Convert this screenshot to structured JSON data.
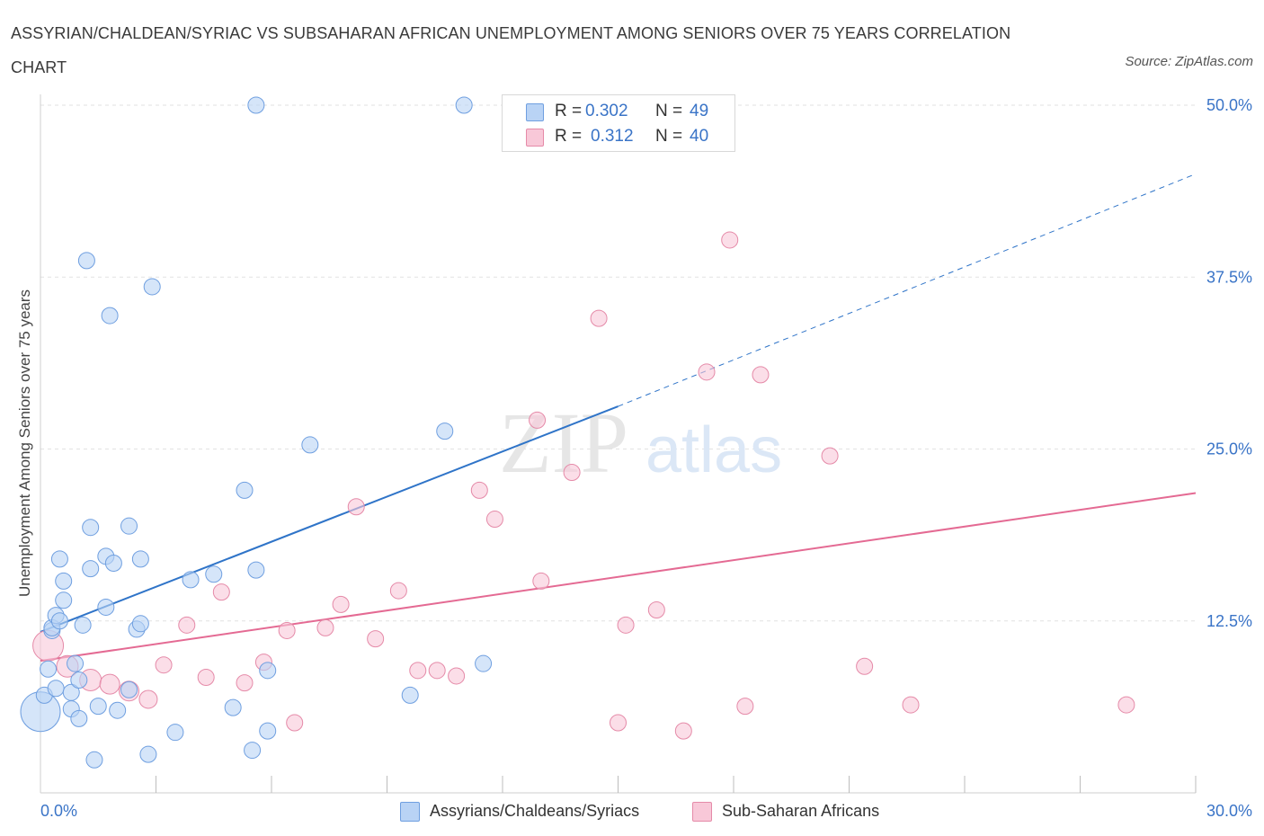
{
  "title": "ASSYRIAN/CHALDEAN/SYRIAC VS SUBSAHARAN AFRICAN UNEMPLOYMENT AMONG SENIORS OVER 75 YEARS CORRELATION CHART",
  "source": "Source: ZipAtlas.com",
  "colors": {
    "blue_fill": "#b9d3f5",
    "blue_stroke": "#6f9fe0",
    "blue_line": "#2f74c8",
    "pink_fill": "#f8c8d8",
    "pink_stroke": "#e58aa8",
    "pink_line": "#e46a93",
    "axis_text": "#3a74c7",
    "grid": "#e2e2e2"
  },
  "legend": {
    "r_label": "R =",
    "n_label": "N =",
    "blue_r": "0.302",
    "blue_n": "49",
    "pink_r": "0.312",
    "pink_n": "40"
  },
  "bottom_legend": {
    "blue": "Assyrians/Chaldeans/Syriacs",
    "pink": "Sub-Saharan Africans"
  },
  "chart_data": {
    "type": "scatter",
    "title": "ASSYRIAN/CHALDEAN/SYRIAC VS SUBSAHARAN AFRICAN UNEMPLOYMENT AMONG SENIORS OVER 75 YEARS CORRELATION CHART",
    "xlabel": "",
    "ylabel": "Unemployment Among Seniors over 75 years",
    "xlim": [
      0,
      30
    ],
    "ylim": [
      0,
      50
    ],
    "x_tick_labels": [
      "0.0%",
      "30.0%"
    ],
    "y_ticks": [
      12.5,
      25,
      37.5,
      50
    ],
    "y_tick_labels": [
      "12.5%",
      "25.0%",
      "37.5%",
      "50.0%"
    ],
    "grid": true,
    "legend_position": "top-center",
    "watermark": "ZIPatlas",
    "series": [
      {
        "name": "Assyrians/Chaldeans/Syriacs",
        "color": "blue",
        "R": 0.302,
        "N": 49,
        "trend": {
          "x0": 0,
          "y0": 11.7,
          "x1": 15,
          "y1": 28.1,
          "dashed_to_x": 30,
          "dashed_to_y": 45.0
        },
        "points": [
          {
            "x": 0.0,
            "y": 5.9,
            "s": 22
          },
          {
            "x": 0.1,
            "y": 7.1,
            "s": 9
          },
          {
            "x": 0.2,
            "y": 9.0,
            "s": 9
          },
          {
            "x": 0.3,
            "y": 11.8,
            "s": 9
          },
          {
            "x": 0.3,
            "y": 12.0,
            "s": 9
          },
          {
            "x": 0.4,
            "y": 7.6,
            "s": 9
          },
          {
            "x": 0.4,
            "y": 12.9,
            "s": 9
          },
          {
            "x": 0.5,
            "y": 12.5,
            "s": 9
          },
          {
            "x": 0.5,
            "y": 17.0,
            "s": 9
          },
          {
            "x": 0.6,
            "y": 14.0,
            "s": 9
          },
          {
            "x": 0.6,
            "y": 15.4,
            "s": 9
          },
          {
            "x": 0.8,
            "y": 6.1,
            "s": 9
          },
          {
            "x": 0.8,
            "y": 7.3,
            "s": 9
          },
          {
            "x": 0.9,
            "y": 9.4,
            "s": 9
          },
          {
            "x": 1.0,
            "y": 8.2,
            "s": 9
          },
          {
            "x": 1.0,
            "y": 5.4,
            "s": 9
          },
          {
            "x": 1.1,
            "y": 12.2,
            "s": 9
          },
          {
            "x": 1.2,
            "y": 38.7,
            "s": 9
          },
          {
            "x": 1.3,
            "y": 16.3,
            "s": 9
          },
          {
            "x": 1.3,
            "y": 19.3,
            "s": 9
          },
          {
            "x": 1.4,
            "y": 2.4,
            "s": 9
          },
          {
            "x": 1.5,
            "y": 6.3,
            "s": 9
          },
          {
            "x": 1.7,
            "y": 13.5,
            "s": 9
          },
          {
            "x": 1.7,
            "y": 17.2,
            "s": 9
          },
          {
            "x": 1.8,
            "y": 34.7,
            "s": 9
          },
          {
            "x": 1.9,
            "y": 16.7,
            "s": 9
          },
          {
            "x": 2.0,
            "y": 6.0,
            "s": 9
          },
          {
            "x": 2.3,
            "y": 7.5,
            "s": 9
          },
          {
            "x": 2.3,
            "y": 19.4,
            "s": 9
          },
          {
            "x": 2.5,
            "y": 11.9,
            "s": 9
          },
          {
            "x": 2.6,
            "y": 12.3,
            "s": 9
          },
          {
            "x": 2.6,
            "y": 17.0,
            "s": 9
          },
          {
            "x": 2.8,
            "y": 2.8,
            "s": 9
          },
          {
            "x": 2.9,
            "y": 36.8,
            "s": 9
          },
          {
            "x": 3.5,
            "y": 4.4,
            "s": 9
          },
          {
            "x": 3.9,
            "y": 15.5,
            "s": 9
          },
          {
            "x": 4.5,
            "y": 15.9,
            "s": 9
          },
          {
            "x": 5.0,
            "y": 6.2,
            "s": 9
          },
          {
            "x": 5.3,
            "y": 22.0,
            "s": 9
          },
          {
            "x": 5.5,
            "y": 3.1,
            "s": 9
          },
          {
            "x": 5.6,
            "y": 16.2,
            "s": 9
          },
          {
            "x": 5.6,
            "y": 50.0,
            "s": 9
          },
          {
            "x": 5.9,
            "y": 4.5,
            "s": 9
          },
          {
            "x": 5.9,
            "y": 8.9,
            "s": 9
          },
          {
            "x": 7.0,
            "y": 25.3,
            "s": 9
          },
          {
            "x": 9.6,
            "y": 7.1,
            "s": 9
          },
          {
            "x": 10.5,
            "y": 26.3,
            "s": 9
          },
          {
            "x": 11.5,
            "y": 9.4,
            "s": 9
          },
          {
            "x": 11.0,
            "y": 50.0,
            "s": 9
          }
        ]
      },
      {
        "name": "Sub-Saharan Africans",
        "color": "pink",
        "R": 0.312,
        "N": 40,
        "trend": {
          "x0": 0,
          "y0": 9.6,
          "x1": 30,
          "y1": 21.8
        },
        "points": [
          {
            "x": 0.2,
            "y": 10.7,
            "s": 17
          },
          {
            "x": 0.7,
            "y": 9.2,
            "s": 12
          },
          {
            "x": 1.3,
            "y": 8.2,
            "s": 12
          },
          {
            "x": 1.8,
            "y": 7.9,
            "s": 11
          },
          {
            "x": 2.3,
            "y": 7.4,
            "s": 11
          },
          {
            "x": 2.8,
            "y": 6.8,
            "s": 10
          },
          {
            "x": 3.2,
            "y": 9.3,
            "s": 9
          },
          {
            "x": 3.8,
            "y": 12.2,
            "s": 9
          },
          {
            "x": 4.3,
            "y": 8.4,
            "s": 9
          },
          {
            "x": 4.7,
            "y": 14.6,
            "s": 9
          },
          {
            "x": 5.3,
            "y": 8.0,
            "s": 9
          },
          {
            "x": 5.8,
            "y": 9.5,
            "s": 9
          },
          {
            "x": 6.4,
            "y": 11.8,
            "s": 9
          },
          {
            "x": 6.6,
            "y": 5.1,
            "s": 9
          },
          {
            "x": 7.4,
            "y": 12.0,
            "s": 9
          },
          {
            "x": 7.8,
            "y": 13.7,
            "s": 9
          },
          {
            "x": 8.2,
            "y": 20.8,
            "s": 9
          },
          {
            "x": 8.7,
            "y": 11.2,
            "s": 9
          },
          {
            "x": 9.3,
            "y": 14.7,
            "s": 9
          },
          {
            "x": 9.8,
            "y": 8.9,
            "s": 9
          },
          {
            "x": 10.3,
            "y": 8.9,
            "s": 9
          },
          {
            "x": 10.8,
            "y": 8.5,
            "s": 9
          },
          {
            "x": 11.4,
            "y": 22.0,
            "s": 9
          },
          {
            "x": 11.8,
            "y": 19.9,
            "s": 9
          },
          {
            "x": 12.9,
            "y": 27.1,
            "s": 9
          },
          {
            "x": 13.0,
            "y": 15.4,
            "s": 9
          },
          {
            "x": 13.8,
            "y": 23.3,
            "s": 9
          },
          {
            "x": 14.5,
            "y": 34.5,
            "s": 9
          },
          {
            "x": 15.0,
            "y": 5.1,
            "s": 9
          },
          {
            "x": 15.2,
            "y": 12.2,
            "s": 9
          },
          {
            "x": 16.0,
            "y": 13.3,
            "s": 9
          },
          {
            "x": 16.7,
            "y": 4.5,
            "s": 9
          },
          {
            "x": 17.3,
            "y": 30.6,
            "s": 9
          },
          {
            "x": 17.9,
            "y": 40.2,
            "s": 9
          },
          {
            "x": 18.3,
            "y": 6.3,
            "s": 9
          },
          {
            "x": 18.7,
            "y": 30.4,
            "s": 9
          },
          {
            "x": 20.5,
            "y": 24.5,
            "s": 9
          },
          {
            "x": 21.4,
            "y": 9.2,
            "s": 9
          },
          {
            "x": 22.6,
            "y": 6.4,
            "s": 9
          },
          {
            "x": 28.2,
            "y": 6.4,
            "s": 9
          }
        ]
      }
    ]
  }
}
